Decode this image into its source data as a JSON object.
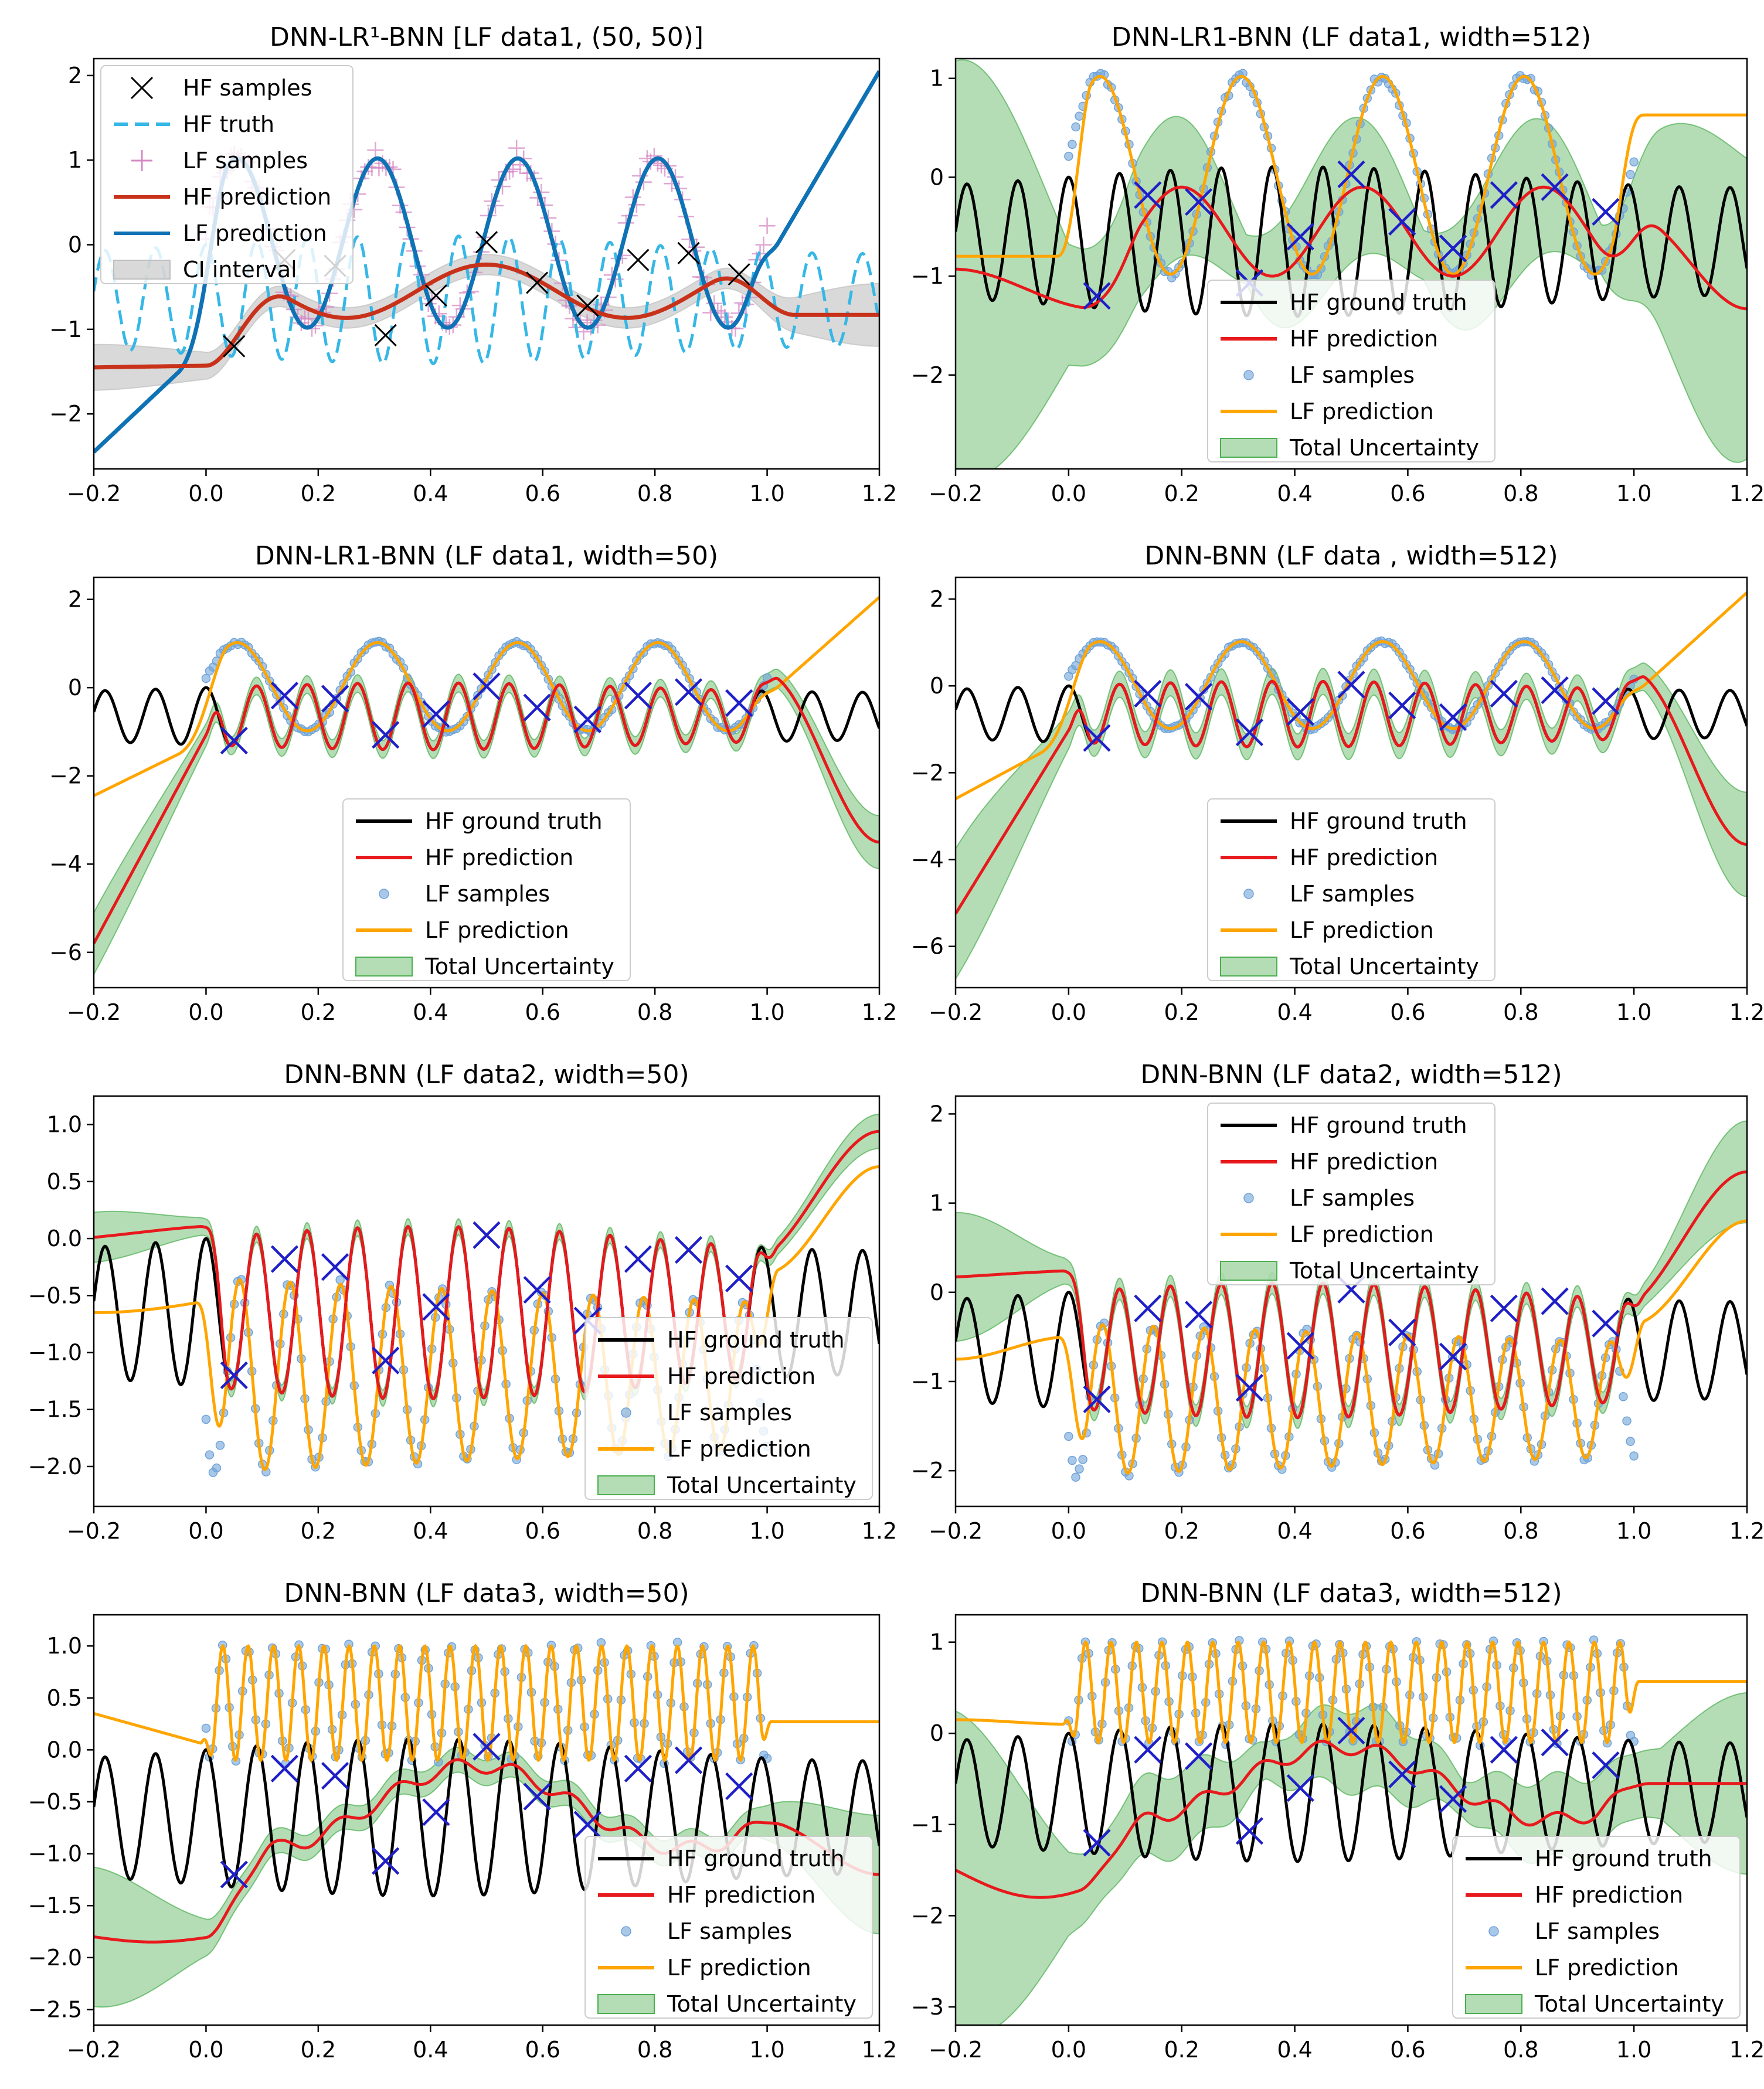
{
  "colors": {
    "hf_truth_black": "#000000",
    "hf_pred_red": "#e8191c",
    "lf_pred_orange": "#ffa500",
    "lf_samples_blue": "#6fa3d8",
    "hf_samples_blue": "#1f1fc8",
    "uncertainty_green": "#4caf50",
    "p1_hf_truth": "#36b7e6",
    "p1_lf_samples": "#d48ac4",
    "p1_hf_pred": "#c8321a",
    "p1_lf_pred": "#0f72b5",
    "p1_ci": "#bfbfbf"
  },
  "chart_data": [
    {
      "type": "line",
      "title": "DNN-LR¹-BNN [LF data1, (50, 50)]",
      "xlim": [
        -0.2,
        1.2
      ],
      "ylim": [
        -2.65,
        2.2
      ],
      "xticks": [
        "-0.2",
        "0.0",
        "0.2",
        "0.4",
        "0.6",
        "0.8",
        "1.0",
        "1.2"
      ],
      "yticks": [
        "-2",
        "-1",
        "0",
        "1",
        "2"
      ],
      "legend_position": "top-left",
      "legend": [
        "HF samples",
        "HF truth",
        "LF samples",
        "HF prediction",
        "LF prediction",
        "CI interval"
      ],
      "hf_samples": [
        [
          0.05,
          -1.2
        ],
        [
          0.14,
          -0.18
        ],
        [
          0.23,
          -0.25
        ],
        [
          0.32,
          -1.07
        ],
        [
          0.41,
          -0.6
        ],
        [
          0.5,
          0.03
        ],
        [
          0.59,
          -0.45
        ],
        [
          0.68,
          -0.72
        ],
        [
          0.77,
          -0.18
        ],
        [
          0.86,
          -0.1
        ],
        [
          0.95,
          -0.35
        ]
      ],
      "lf_prediction_endpoints": [
        [
          -0.2,
          -2.45
        ],
        [
          1.2,
          2.05
        ]
      ],
      "hf_prediction_endpoints": [
        [
          -0.2,
          -1.45
        ],
        [
          1.2,
          -0.83
        ]
      ]
    },
    {
      "type": "line",
      "title": "DNN-LR1-BNN (LF data1, width=512)",
      "xlim": [
        -0.2,
        1.2
      ],
      "ylim": [
        -2.95,
        1.2
      ],
      "xticks": [
        "-0.2",
        "0.0",
        "0.2",
        "0.4",
        "0.6",
        "0.8",
        "1.0",
        "1.2"
      ],
      "yticks": [
        "-2",
        "-1",
        "0",
        "1"
      ],
      "legend_position": "lower-center",
      "legend": [
        "HF ground truth",
        "HF prediction",
        "LF samples",
        "LF prediction",
        "Total Uncertainty"
      ],
      "hf_samples": [
        [
          0.05,
          -1.2
        ],
        [
          0.14,
          -0.18
        ],
        [
          0.23,
          -0.25
        ],
        [
          0.32,
          -1.07
        ],
        [
          0.41,
          -0.6
        ],
        [
          0.5,
          0.03
        ],
        [
          0.59,
          -0.45
        ],
        [
          0.68,
          -0.72
        ],
        [
          0.77,
          -0.18
        ],
        [
          0.86,
          -0.1
        ],
        [
          0.95,
          -0.35
        ]
      ],
      "lf_prediction_endpoints": [
        [
          -0.2,
          -0.8
        ],
        [
          1.2,
          0.63
        ]
      ],
      "hf_prediction_endpoints": [
        [
          -0.2,
          -0.93
        ],
        [
          1.2,
          -1.33
        ]
      ],
      "uncertainty_at_edges": {
        "left": [
          -2.7,
          0.8
        ],
        "right": [
          -2.6,
          -0.7
        ]
      }
    },
    {
      "type": "line",
      "title": "DNN-LR1-BNN (LF data1, width=50)",
      "xlim": [
        -0.2,
        1.2
      ],
      "ylim": [
        -6.8,
        2.5
      ],
      "xticks": [
        "-0.2",
        "0.0",
        "0.2",
        "0.4",
        "0.6",
        "0.8",
        "1.0",
        "1.2"
      ],
      "yticks": [
        "-6",
        "-4",
        "-2",
        "0",
        "2"
      ],
      "legend_position": "lower-center",
      "legend": [
        "HF ground truth",
        "HF prediction",
        "LF samples",
        "LF prediction",
        "Total Uncertainty"
      ],
      "hf_samples": [
        [
          0.05,
          -1.2
        ],
        [
          0.14,
          -0.18
        ],
        [
          0.23,
          -0.25
        ],
        [
          0.32,
          -1.07
        ],
        [
          0.41,
          -0.6
        ],
        [
          0.5,
          0.03
        ],
        [
          0.59,
          -0.45
        ],
        [
          0.68,
          -0.72
        ],
        [
          0.77,
          -0.18
        ],
        [
          0.86,
          -0.1
        ],
        [
          0.95,
          -0.35
        ]
      ],
      "lf_prediction_endpoints": [
        [
          -0.2,
          -2.45
        ],
        [
          1.2,
          2.05
        ]
      ],
      "hf_prediction_endpoints": [
        [
          -0.2,
          -5.8
        ],
        [
          1.2,
          -3.5
        ]
      ],
      "uncertainty_at_edges": {
        "left": [
          -6.4,
          -5.2
        ],
        "right": [
          -4.0,
          -3.1
        ]
      }
    },
    {
      "type": "line",
      "title": "DNN-BNN (LF data , width=512)",
      "xlim": [
        -0.2,
        1.2
      ],
      "ylim": [
        -6.95,
        2.5
      ],
      "xticks": [
        "-0.2",
        "0.0",
        "0.2",
        "0.4",
        "0.6",
        "0.8",
        "1.0",
        "1.2"
      ],
      "yticks": [
        "-6",
        "-4",
        "-2",
        "0",
        "2"
      ],
      "legend_position": "lower-center",
      "legend": [
        "HF ground truth",
        "HF prediction",
        "LF samples",
        "LF prediction",
        "Total Uncertainty"
      ],
      "hf_samples": [
        [
          0.05,
          -1.2
        ],
        [
          0.14,
          -0.18
        ],
        [
          0.23,
          -0.25
        ],
        [
          0.32,
          -1.07
        ],
        [
          0.41,
          -0.6
        ],
        [
          0.5,
          0.03
        ],
        [
          0.59,
          -0.45
        ],
        [
          0.68,
          -0.72
        ],
        [
          0.77,
          -0.18
        ],
        [
          0.86,
          -0.1
        ],
        [
          0.95,
          -0.35
        ]
      ],
      "lf_prediction_endpoints": [
        [
          -0.2,
          -2.6
        ],
        [
          1.2,
          2.15
        ]
      ],
      "hf_prediction_endpoints": [
        [
          -0.2,
          -5.25
        ],
        [
          1.2,
          -3.65
        ]
      ],
      "uncertainty_at_edges": {
        "left": [
          -6.5,
          -4.0
        ],
        "right": [
          -4.55,
          -2.7
        ]
      }
    },
    {
      "type": "line",
      "title": "DNN-BNN (LF data2, width=50)",
      "xlim": [
        -0.2,
        1.2
      ],
      "ylim": [
        -2.35,
        1.25
      ],
      "xticks": [
        "-0.2",
        "0.0",
        "0.2",
        "0.4",
        "0.6",
        "0.8",
        "1.0",
        "1.2"
      ],
      "yticks": [
        "-2.0",
        "-1.5",
        "-1.0",
        "-0.5",
        "0.0",
        "0.5",
        "1.0"
      ],
      "legend_position": "lower-right",
      "legend": [
        "HF ground truth",
        "HF prediction",
        "LF samples",
        "LF prediction",
        "Total Uncertainty"
      ],
      "hf_samples": [
        [
          0.05,
          -1.2
        ],
        [
          0.14,
          -0.18
        ],
        [
          0.23,
          -0.25
        ],
        [
          0.32,
          -1.07
        ],
        [
          0.41,
          -0.6
        ],
        [
          0.5,
          0.03
        ],
        [
          0.59,
          -0.45
        ],
        [
          0.68,
          -0.72
        ],
        [
          0.77,
          -0.18
        ],
        [
          0.86,
          -0.1
        ],
        [
          0.95,
          -0.35
        ]
      ],
      "lf_prediction_endpoints": [
        [
          -0.2,
          -0.6
        ],
        [
          1.2,
          0.63
        ]
      ],
      "hf_prediction_endpoints": [
        [
          -0.2,
          0.02
        ],
        [
          1.2,
          0.94
        ]
      ]
    },
    {
      "type": "line",
      "title": "DNN-BNN (LF data2, width=512)",
      "xlim": [
        -0.2,
        1.2
      ],
      "ylim": [
        -2.4,
        2.2
      ],
      "xticks": [
        "-0.2",
        "0.0",
        "0.2",
        "0.4",
        "0.6",
        "0.8",
        "1.0",
        "1.2"
      ],
      "yticks": [
        "-2",
        "-1",
        "0",
        "1",
        "2"
      ],
      "legend_position": "top-center",
      "legend": [
        "HF ground truth",
        "HF prediction",
        "LF samples",
        "LF prediction",
        "Total Uncertainty"
      ],
      "hf_samples": [
        [
          0.05,
          -1.2
        ],
        [
          0.14,
          -0.18
        ],
        [
          0.23,
          -0.25
        ],
        [
          0.32,
          -1.07
        ],
        [
          0.41,
          -0.6
        ],
        [
          0.5,
          0.03
        ],
        [
          0.59,
          -0.45
        ],
        [
          0.68,
          -0.72
        ],
        [
          0.77,
          -0.18
        ],
        [
          0.86,
          -0.1
        ],
        [
          0.95,
          -0.35
        ]
      ],
      "lf_prediction_endpoints": [
        [
          -0.2,
          -0.85
        ],
        [
          1.2,
          0.8
        ]
      ],
      "hf_prediction_endpoints": [
        [
          -0.2,
          0.15
        ],
        [
          1.2,
          1.35
        ]
      ]
    },
    {
      "type": "line",
      "title": "DNN-BNN (LF data3, width=50)",
      "xlim": [
        -0.2,
        1.2
      ],
      "ylim": [
        -2.65,
        1.3
      ],
      "xticks": [
        "-0.2",
        "0.0",
        "0.2",
        "0.4",
        "0.6",
        "0.8",
        "1.0",
        "1.2"
      ],
      "yticks": [
        "-2.5",
        "-2.0",
        "-1.5",
        "-1.0",
        "-0.5",
        "0.0",
        "0.5",
        "1.0"
      ],
      "legend_position": "lower-right",
      "legend": [
        "HF ground truth",
        "HF prediction",
        "LF samples",
        "LF prediction",
        "Total Uncertainty"
      ],
      "hf_samples": [
        [
          0.05,
          -1.2
        ],
        [
          0.14,
          -0.18
        ],
        [
          0.23,
          -0.25
        ],
        [
          0.32,
          -1.07
        ],
        [
          0.41,
          -0.6
        ],
        [
          0.5,
          0.03
        ],
        [
          0.59,
          -0.45
        ],
        [
          0.68,
          -0.72
        ],
        [
          0.77,
          -0.18
        ],
        [
          0.86,
          -0.1
        ],
        [
          0.95,
          -0.35
        ]
      ],
      "lf_prediction_endpoints": [
        [
          -0.2,
          0.35
        ],
        [
          1.2,
          0.27
        ]
      ],
      "hf_prediction_endpoints": [
        [
          -0.2,
          -1.8
        ],
        [
          1.2,
          -1.2
        ]
      ]
    },
    {
      "type": "line",
      "title": "DNN-BNN (LF data3, width=512)",
      "xlim": [
        -0.2,
        1.2
      ],
      "ylim": [
        -3.2,
        1.3
      ],
      "xticks": [
        "-0.2",
        "0.0",
        "0.2",
        "0.4",
        "0.6",
        "0.8",
        "1.0",
        "1.2"
      ],
      "yticks": [
        "-3",
        "-2",
        "-1",
        "0",
        "1"
      ],
      "legend_position": "lower-right",
      "legend": [
        "HF ground truth",
        "HF prediction",
        "LF samples",
        "LF prediction",
        "Total Uncertainty"
      ],
      "hf_samples": [
        [
          0.05,
          -1.2
        ],
        [
          0.14,
          -0.18
        ],
        [
          0.23,
          -0.25
        ],
        [
          0.32,
          -1.07
        ],
        [
          0.41,
          -0.6
        ],
        [
          0.5,
          0.03
        ],
        [
          0.59,
          -0.45
        ],
        [
          0.68,
          -0.72
        ],
        [
          0.77,
          -0.18
        ],
        [
          0.86,
          -0.1
        ],
        [
          0.95,
          -0.35
        ]
      ],
      "lf_prediction_endpoints": [
        [
          -0.2,
          0.15
        ],
        [
          1.2,
          0.57
        ]
      ],
      "hf_prediction_endpoints": [
        [
          -0.2,
          -1.5
        ],
        [
          1.2,
          -0.6
        ]
      ]
    }
  ]
}
